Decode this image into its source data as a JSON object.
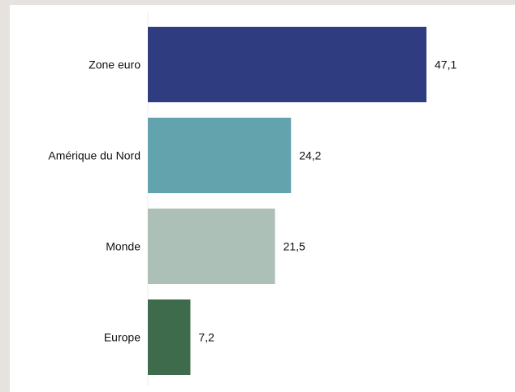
{
  "chart_data": {
    "type": "bar",
    "orientation": "horizontal",
    "categories": [
      "Zone euro",
      "Amérique du Nord",
      "Monde",
      "Europe"
    ],
    "values": [
      47.1,
      24.2,
      21.5,
      7.2
    ],
    "value_labels": [
      "47,1",
      "24,2",
      "21,5",
      "7,2"
    ],
    "colors": [
      "#2f3d80",
      "#62a3ae",
      "#adc0b8",
      "#3e6b4b"
    ],
    "title": "",
    "xlabel": "",
    "ylabel": "",
    "xlim": [
      0,
      47.1
    ],
    "grid": false,
    "legend": "none"
  }
}
